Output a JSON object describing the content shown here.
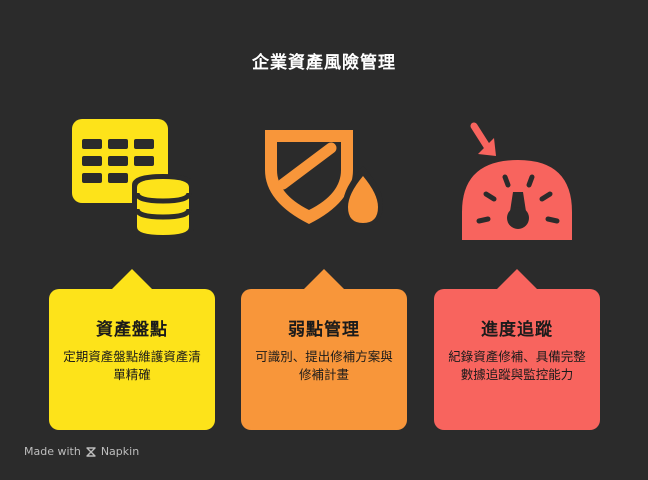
{
  "title": "企業資產風險管理",
  "colors": {
    "background": "#2b2b2b",
    "yellow": "#fde31a",
    "orange": "#f8963a",
    "red": "#f8645e"
  },
  "cards": [
    {
      "title": "資產盤點",
      "description": "定期資產盤點維護資產清單精確",
      "icon": "table-database-icon",
      "color": "#fde31a"
    },
    {
      "title": "弱點管理",
      "description": "可識別、提出修補方案與修補計畫",
      "icon": "shield-drop-icon",
      "color": "#f8963a"
    },
    {
      "title": "進度追蹤",
      "description": "紀錄資產修補、具備完整數據追蹤與監控能力",
      "icon": "gauge-icon",
      "color": "#f8645e"
    }
  ],
  "footer": {
    "made_with": "Made with",
    "brand": "Napkin"
  }
}
